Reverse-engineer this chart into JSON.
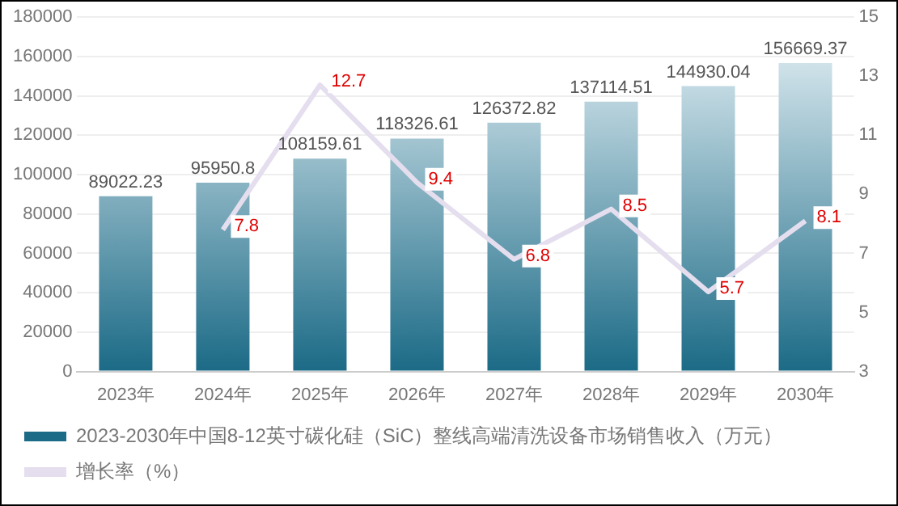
{
  "chart_data": {
    "type": "bar",
    "categories": [
      "2023年",
      "2024年",
      "2025年",
      "2026年",
      "2027年",
      "2028年",
      "2029年",
      "2030年"
    ],
    "series": [
      {
        "name": "2023-2030年中国8-12英寸碳化硅（SiC）整线高端清洗设备市场销售收入（万元）",
        "color": "#1b6a86",
        "values": [
          89022.23,
          95950.8,
          108159.61,
          118326.61,
          126372.82,
          137114.51,
          144930.04,
          156669.37
        ]
      },
      {
        "name": "增长率（%）",
        "type": "line",
        "axis": "y2",
        "color": "#e4deee",
        "values": [
          null,
          7.8,
          12.7,
          9.4,
          6.8,
          8.5,
          5.7,
          8.1
        ]
      }
    ],
    "ylim": [
      0,
      180000
    ],
    "yticks": [
      0,
      20000,
      40000,
      60000,
      80000,
      100000,
      120000,
      140000,
      160000,
      180000
    ],
    "y2lim": [
      3,
      15
    ],
    "y2ticks": [
      3,
      5,
      7,
      9,
      11,
      13,
      15
    ],
    "grid": "y",
    "legend": "bottom",
    "data_labels": true,
    "marker": "none"
  }
}
